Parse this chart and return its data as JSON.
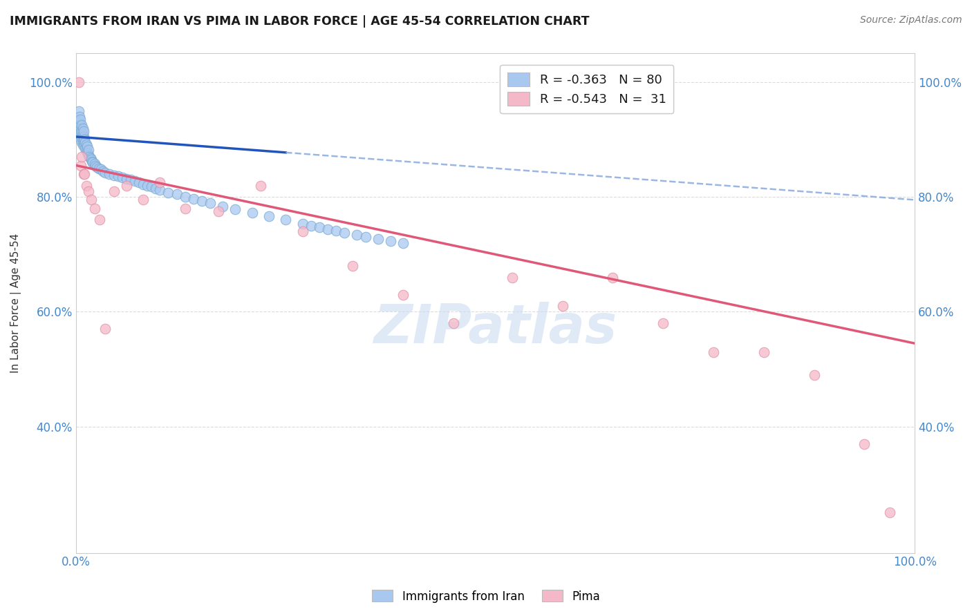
{
  "title": "IMMIGRANTS FROM IRAN VS PIMA IN LABOR FORCE | AGE 45-54 CORRELATION CHART",
  "source": "Source: ZipAtlas.com",
  "ylabel": "In Labor Force | Age 45-54",
  "xlim": [
    0.0,
    1.0
  ],
  "ylim": [
    0.18,
    1.05
  ],
  "yticks": [
    0.4,
    0.6,
    0.8,
    1.0
  ],
  "ytick_labels": [
    "40.0%",
    "60.0%",
    "80.0%",
    "100.0%"
  ],
  "iran_color": "#a8c8f0",
  "iran_edge_color": "#7aaad0",
  "pima_color": "#f5b8c8",
  "pima_edge_color": "#e090a8",
  "iran_line_solid_color": "#2255bb",
  "iran_line_dash_color": "#88aadd",
  "pima_line_color": "#e05878",
  "background_color": "#ffffff",
  "grid_color": "#d8d8d8",
  "watermark": "ZIPatlas",
  "watermark_color": "#ccddf0",
  "iran_line_start_x": 0.0,
  "iran_line_end_solid_x": 0.25,
  "iran_line_end_x": 1.0,
  "iran_line_start_y": 0.905,
  "iran_line_slope": -0.11,
  "pima_line_start_x": 0.0,
  "pima_line_end_x": 1.0,
  "pima_line_start_y": 0.855,
  "pima_line_slope": -0.31,
  "iran_x": [
    0.003,
    0.003,
    0.004,
    0.004,
    0.004,
    0.005,
    0.005,
    0.005,
    0.006,
    0.006,
    0.006,
    0.007,
    0.007,
    0.007,
    0.007,
    0.008,
    0.008,
    0.008,
    0.008,
    0.009,
    0.009,
    0.009,
    0.01,
    0.01,
    0.011,
    0.011,
    0.012,
    0.012,
    0.013,
    0.013,
    0.014,
    0.015,
    0.015,
    0.016,
    0.017,
    0.018,
    0.019,
    0.02,
    0.022,
    0.023,
    0.025,
    0.027,
    0.03,
    0.032,
    0.035,
    0.04,
    0.045,
    0.05,
    0.055,
    0.06,
    0.065,
    0.07,
    0.075,
    0.08,
    0.085,
    0.09,
    0.095,
    0.1,
    0.11,
    0.12,
    0.13,
    0.14,
    0.15,
    0.16,
    0.175,
    0.19,
    0.21,
    0.23,
    0.25,
    0.27,
    0.28,
    0.29,
    0.3,
    0.31,
    0.32,
    0.335,
    0.345,
    0.36,
    0.375,
    0.39
  ],
  "iran_y": [
    0.95,
    0.92,
    0.93,
    0.94,
    0.91,
    0.915,
    0.925,
    0.935,
    0.9,
    0.91,
    0.92,
    0.895,
    0.905,
    0.915,
    0.925,
    0.89,
    0.9,
    0.91,
    0.92,
    0.895,
    0.905,
    0.915,
    0.89,
    0.9,
    0.885,
    0.895,
    0.882,
    0.892,
    0.878,
    0.888,
    0.876,
    0.872,
    0.882,
    0.87,
    0.868,
    0.865,
    0.862,
    0.86,
    0.858,
    0.855,
    0.852,
    0.85,
    0.848,
    0.845,
    0.842,
    0.84,
    0.838,
    0.836,
    0.834,
    0.832,
    0.83,
    0.828,
    0.825,
    0.822,
    0.82,
    0.818,
    0.815,
    0.812,
    0.808,
    0.805,
    0.8,
    0.797,
    0.793,
    0.789,
    0.784,
    0.779,
    0.773,
    0.767,
    0.76,
    0.753,
    0.75,
    0.747,
    0.744,
    0.741,
    0.738,
    0.734,
    0.731,
    0.727,
    0.723,
    0.72
  ],
  "pima_x": [
    0.003,
    0.006,
    0.007,
    0.009,
    0.01,
    0.012,
    0.015,
    0.018,
    0.022,
    0.028,
    0.035,
    0.045,
    0.06,
    0.08,
    0.1,
    0.13,
    0.17,
    0.22,
    0.27,
    0.33,
    0.39,
    0.45,
    0.52,
    0.58,
    0.64,
    0.7,
    0.76,
    0.82,
    0.88,
    0.94,
    0.97
  ],
  "pima_y": [
    1.0,
    0.855,
    0.87,
    0.84,
    0.84,
    0.82,
    0.81,
    0.795,
    0.78,
    0.76,
    0.57,
    0.81,
    0.82,
    0.795,
    0.825,
    0.78,
    0.775,
    0.82,
    0.74,
    0.68,
    0.63,
    0.58,
    0.66,
    0.61,
    0.66,
    0.58,
    0.53,
    0.53,
    0.49,
    0.37,
    0.25
  ]
}
